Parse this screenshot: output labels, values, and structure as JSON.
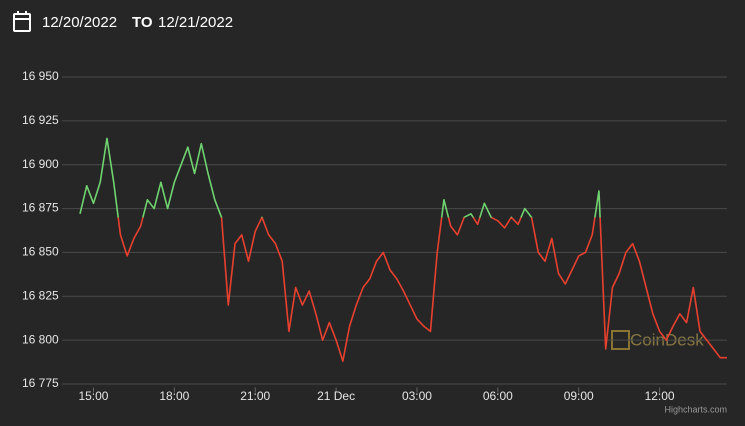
{
  "header": {
    "from": "12/20/2022",
    "to_word": "TO",
    "to": "12/21/2022"
  },
  "chart_data": {
    "type": "line",
    "x": [
      "2022-12-20 14:30",
      "2022-12-20 14:45",
      "2022-12-20 15:00",
      "2022-12-20 15:15",
      "2022-12-20 15:30",
      "2022-12-20 15:45",
      "2022-12-20 16:00",
      "2022-12-20 16:15",
      "2022-12-20 16:30",
      "2022-12-20 16:45",
      "2022-12-20 17:00",
      "2022-12-20 17:15",
      "2022-12-20 17:30",
      "2022-12-20 17:45",
      "2022-12-20 18:00",
      "2022-12-20 18:15",
      "2022-12-20 18:30",
      "2022-12-20 18:45",
      "2022-12-20 19:00",
      "2022-12-20 19:15",
      "2022-12-20 19:30",
      "2022-12-20 19:45",
      "2022-12-20 20:00",
      "2022-12-20 20:15",
      "2022-12-20 20:30",
      "2022-12-20 20:45",
      "2022-12-20 21:00",
      "2022-12-20 21:15",
      "2022-12-20 21:30",
      "2022-12-20 21:45",
      "2022-12-20 22:00",
      "2022-12-20 22:15",
      "2022-12-20 22:30",
      "2022-12-20 22:45",
      "2022-12-20 23:00",
      "2022-12-20 23:15",
      "2022-12-20 23:30",
      "2022-12-20 23:45",
      "2022-12-21 00:00",
      "2022-12-21 00:15",
      "2022-12-21 00:30",
      "2022-12-21 00:45",
      "2022-12-21 01:00",
      "2022-12-21 01:15",
      "2022-12-21 01:30",
      "2022-12-21 01:45",
      "2022-12-21 02:00",
      "2022-12-21 02:15",
      "2022-12-21 02:30",
      "2022-12-21 02:45",
      "2022-12-21 03:00",
      "2022-12-21 03:15",
      "2022-12-21 03:30",
      "2022-12-21 03:45",
      "2022-12-21 04:00",
      "2022-12-21 04:15",
      "2022-12-21 04:30",
      "2022-12-21 04:45",
      "2022-12-21 05:00",
      "2022-12-21 05:15",
      "2022-12-21 05:30",
      "2022-12-21 05:45",
      "2022-12-21 06:00",
      "2022-12-21 06:15",
      "2022-12-21 06:30",
      "2022-12-21 06:45",
      "2022-12-21 07:00",
      "2022-12-21 07:15",
      "2022-12-21 07:30",
      "2022-12-21 07:45",
      "2022-12-21 08:00",
      "2022-12-21 08:15",
      "2022-12-21 08:30",
      "2022-12-21 08:45",
      "2022-12-21 09:00",
      "2022-12-21 09:15",
      "2022-12-21 09:30",
      "2022-12-21 09:45",
      "2022-12-21 10:00",
      "2022-12-21 10:15",
      "2022-12-21 10:30",
      "2022-12-21 10:45",
      "2022-12-21 11:00",
      "2022-12-21 11:15",
      "2022-12-21 11:30",
      "2022-12-21 11:45",
      "2022-12-21 12:00",
      "2022-12-21 12:15",
      "2022-12-21 12:30",
      "2022-12-21 12:45",
      "2022-12-21 13:00",
      "2022-12-21 13:15",
      "2022-12-21 13:30",
      "2022-12-21 13:45",
      "2022-12-21 14:00",
      "2022-12-21 14:15",
      "2022-12-21 14:30"
    ],
    "values": [
      16872,
      16888,
      16878,
      16890,
      16915,
      16890,
      16860,
      16848,
      16858,
      16865,
      16880,
      16875,
      16890,
      16875,
      16890,
      16900,
      16910,
      16895,
      16912,
      16895,
      16880,
      16870,
      16820,
      16855,
      16860,
      16845,
      16862,
      16870,
      16860,
      16855,
      16845,
      16805,
      16830,
      16820,
      16828,
      16815,
      16800,
      16810,
      16800,
      16788,
      16808,
      16820,
      16830,
      16835,
      16845,
      16850,
      16840,
      16835,
      16828,
      16820,
      16812,
      16808,
      16805,
      16850,
      16880,
      16865,
      16860,
      16870,
      16872,
      16866,
      16878,
      16870,
      16868,
      16864,
      16870,
      16866,
      16875,
      16870,
      16850,
      16845,
      16858,
      16838,
      16832,
      16840,
      16848,
      16850,
      16860,
      16885,
      16795,
      16830,
      16838,
      16850,
      16855,
      16845,
      16830,
      16815,
      16805,
      16800,
      16808,
      16815,
      16810,
      16830,
      16805,
      16800,
      16795,
      16790,
      16790
    ],
    "zones": [
      {
        "value": 16870,
        "color": "#e8402e"
      },
      {
        "color": "#6fd36f"
      }
    ],
    "xlim": [
      "2022-12-20 14:30",
      "2022-12-21 14:30"
    ],
    "xticks": [
      {
        "value": "2022-12-20 15:00",
        "label": "15:00"
      },
      {
        "value": "2022-12-20 18:00",
        "label": "18:00"
      },
      {
        "value": "2022-12-20 21:00",
        "label": "21:00"
      },
      {
        "value": "2022-12-21 00:00",
        "label": "21 Dec"
      },
      {
        "value": "2022-12-21 03:00",
        "label": "03:00"
      },
      {
        "value": "2022-12-21 06:00",
        "label": "06:00"
      },
      {
        "value": "2022-12-21 09:00",
        "label": "09:00"
      },
      {
        "value": "2022-12-21 12:00",
        "label": "12:00"
      }
    ],
    "ylim": [
      16773,
      16952
    ],
    "yticks": [
      {
        "value": 16775,
        "label": "16 775"
      },
      {
        "value": 16800,
        "label": "16 800"
      },
      {
        "value": 16825,
        "label": "16 825"
      },
      {
        "value": 16850,
        "label": "16 850"
      },
      {
        "value": 16875,
        "label": "16 875"
      },
      {
        "value": 16900,
        "label": "16 900"
      },
      {
        "value": 16925,
        "label": "16 925"
      },
      {
        "value": 16950,
        "label": "16 950"
      }
    ],
    "grid": true,
    "watermark": "CoinDesk",
    "credits": "Highcharts.com"
  }
}
